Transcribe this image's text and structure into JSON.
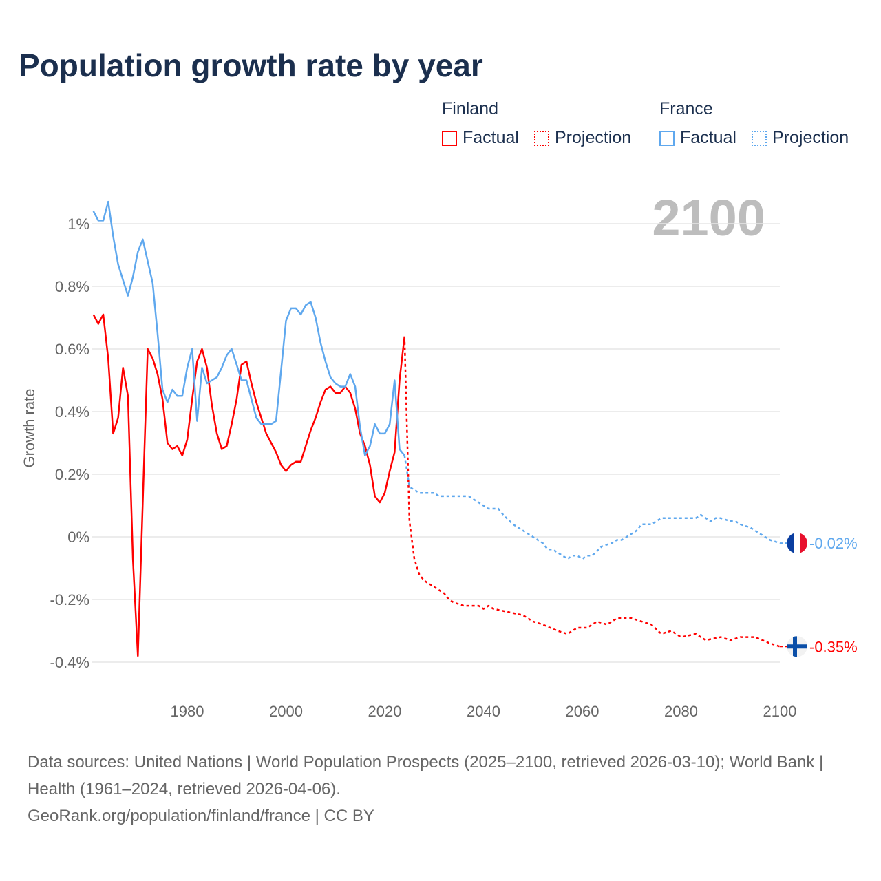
{
  "title": "Population growth rate by year",
  "legend": {
    "groups": [
      {
        "name": "Finland",
        "items": [
          "Factual",
          "Projection"
        ],
        "color": "#ff0000"
      },
      {
        "name": "France",
        "items": [
          "Factual",
          "Projection"
        ],
        "color": "#5fa8ee"
      }
    ]
  },
  "footer": {
    "sources": "Data sources: United Nations | World Population Prospects (2025–2100, retrieved 2026-03-10); World Bank | Health (1961–2024, retrieved 2026-04-06).",
    "credit": "GeoRank.org/population/finland/france | CC BY"
  },
  "chart_data": {
    "type": "line",
    "title": "Population growth rate by year",
    "ylabel": "Growth rate",
    "xlabel": "",
    "current_year_label": "2100",
    "xlim": [
      1961,
      2100
    ],
    "ylim": [
      -0.5,
      1.1
    ],
    "yticks": [
      -0.4,
      -0.2,
      0,
      0.2,
      0.4,
      0.6,
      0.8,
      1
    ],
    "ytick_labels": [
      "-0.4%",
      "-0.2%",
      "0%",
      "0.2%",
      "0.4%",
      "0.6%",
      "0.8%",
      "1%"
    ],
    "xticks": [
      1980,
      2000,
      2020,
      2040,
      2060,
      2080,
      2100
    ],
    "xtick_labels": [
      "1980",
      "2000",
      "2020",
      "2040",
      "2060",
      "2080",
      "2100"
    ],
    "grid": true,
    "series": [
      {
        "name": "Finland Factual",
        "color": "#ff0000",
        "dashed": false,
        "x_start": 1961,
        "values": [
          0.71,
          0.68,
          0.71,
          0.57,
          0.33,
          0.38,
          0.54,
          0.45,
          -0.07,
          -0.38,
          0.11,
          0.6,
          0.57,
          0.52,
          0.44,
          0.3,
          0.28,
          0.29,
          0.26,
          0.31,
          0.44,
          0.56,
          0.6,
          0.54,
          0.42,
          0.33,
          0.28,
          0.29,
          0.36,
          0.44,
          0.55,
          0.56,
          0.49,
          0.43,
          0.38,
          0.33,
          0.3,
          0.27,
          0.23,
          0.21,
          0.23,
          0.24,
          0.24,
          0.29,
          0.34,
          0.38,
          0.43,
          0.47,
          0.48,
          0.46,
          0.46,
          0.48,
          0.46,
          0.41,
          0.33,
          0.29,
          0.23,
          0.13,
          0.11,
          0.14,
          0.21,
          0.27,
          0.5,
          0.64
        ]
      },
      {
        "name": "France Factual",
        "color": "#5fa8ee",
        "dashed": false,
        "x_start": 1961,
        "values": [
          1.04,
          1.01,
          1.01,
          1.07,
          0.96,
          0.87,
          0.82,
          0.77,
          0.83,
          0.91,
          0.95,
          0.88,
          0.81,
          0.65,
          0.47,
          0.43,
          0.47,
          0.45,
          0.45,
          0.54,
          0.6,
          0.37,
          0.54,
          0.49,
          0.5,
          0.51,
          0.54,
          0.58,
          0.6,
          0.55,
          0.5,
          0.5,
          0.44,
          0.38,
          0.36,
          0.36,
          0.36,
          0.37,
          0.53,
          0.69,
          0.73,
          0.73,
          0.71,
          0.74,
          0.75,
          0.7,
          0.62,
          0.56,
          0.51,
          0.49,
          0.48,
          0.48,
          0.52,
          0.48,
          0.35,
          0.26,
          0.29,
          0.36,
          0.33,
          0.33,
          0.36,
          0.5,
          0.28,
          0.26
        ]
      },
      {
        "name": "Finland Projection",
        "color": "#ff0000",
        "dashed": true,
        "x": [
          2024,
          2025,
          2026,
          2027,
          2028,
          2029,
          2030,
          2031,
          2032,
          2033,
          2034,
          2036,
          2039,
          2040,
          2041,
          2042,
          2045,
          2048,
          2050,
          2052,
          2055,
          2057,
          2059,
          2061,
          2063,
          2065,
          2067,
          2070,
          2072,
          2074,
          2076,
          2078,
          2080,
          2083,
          2085,
          2088,
          2090,
          2092,
          2095,
          2098,
          2100
        ],
        "values": [
          0.64,
          0.05,
          -0.07,
          -0.12,
          -0.14,
          -0.15,
          -0.16,
          -0.17,
          -0.18,
          -0.2,
          -0.21,
          -0.22,
          -0.22,
          -0.23,
          -0.22,
          -0.23,
          -0.24,
          -0.25,
          -0.27,
          -0.28,
          -0.3,
          -0.31,
          -0.29,
          -0.29,
          -0.27,
          -0.28,
          -0.26,
          -0.26,
          -0.27,
          -0.28,
          -0.31,
          -0.3,
          -0.32,
          -0.31,
          -0.33,
          -0.32,
          -0.33,
          -0.32,
          -0.32,
          -0.34,
          -0.35
        ]
      },
      {
        "name": "France Projection",
        "color": "#5fa8ee",
        "dashed": true,
        "x": [
          2024,
          2025,
          2026,
          2027,
          2030,
          2031,
          2037,
          2039,
          2041,
          2043,
          2044,
          2046,
          2047,
          2049,
          2050,
          2052,
          2053,
          2054,
          2055,
          2056,
          2057,
          2058,
          2059,
          2060,
          2061,
          2062,
          2064,
          2066,
          2067,
          2068,
          2070,
          2071,
          2072,
          2074,
          2075,
          2076,
          2083,
          2084,
          2086,
          2087,
          2088,
          2090,
          2091,
          2092,
          2094,
          2096,
          2098,
          2100
        ],
        "values": [
          0.26,
          0.16,
          0.15,
          0.14,
          0.14,
          0.13,
          0.13,
          0.11,
          0.09,
          0.09,
          0.07,
          0.04,
          0.03,
          0.01,
          0.0,
          -0.02,
          -0.04,
          -0.04,
          -0.05,
          -0.06,
          -0.07,
          -0.06,
          -0.06,
          -0.07,
          -0.06,
          -0.06,
          -0.03,
          -0.02,
          -0.01,
          -0.01,
          0.01,
          0.02,
          0.04,
          0.04,
          0.05,
          0.06,
          0.06,
          0.07,
          0.05,
          0.06,
          0.06,
          0.05,
          0.05,
          0.04,
          0.03,
          0.01,
          -0.01,
          -0.02
        ]
      }
    ],
    "end_labels": [
      {
        "country": "France",
        "label": "-0.02%",
        "value": -0.02,
        "color": "#5fa8ee",
        "flag": "france-flag"
      },
      {
        "country": "Finland",
        "label": "-0.35%",
        "value": -0.35,
        "color": "#ff0000",
        "flag": "finland-flag"
      }
    ]
  }
}
